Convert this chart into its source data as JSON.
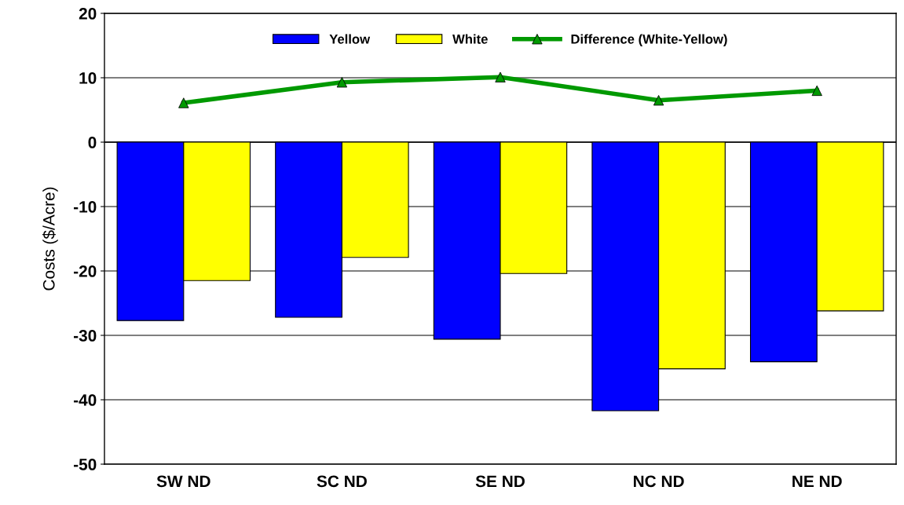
{
  "chart_data": {
    "type": "bar",
    "ylabel": "Costs ($/Acre)",
    "categories": [
      "SW ND",
      "SC ND",
      "SE ND",
      "NC ND",
      "NE ND"
    ],
    "series": [
      {
        "name": "Yellow",
        "color": "#0000ff",
        "values": [
          -27.7,
          -27.2,
          -30.6,
          -41.7,
          -34.1
        ]
      },
      {
        "name": "White",
        "color": "#ffff00",
        "values": [
          -21.5,
          -17.9,
          -20.4,
          -35.2,
          -26.2
        ]
      },
      {
        "name": "Difference (White-Yellow)",
        "type": "line",
        "color": "#009900",
        "marker": "triangle",
        "values": [
          6.1,
          9.3,
          10.1,
          6.5,
          8.0
        ]
      }
    ],
    "ylim": [
      -50,
      20
    ],
    "yticks": [
      -50,
      -40,
      -30,
      -20,
      -10,
      0,
      10,
      20
    ],
    "grid": "y",
    "legend": "top"
  }
}
